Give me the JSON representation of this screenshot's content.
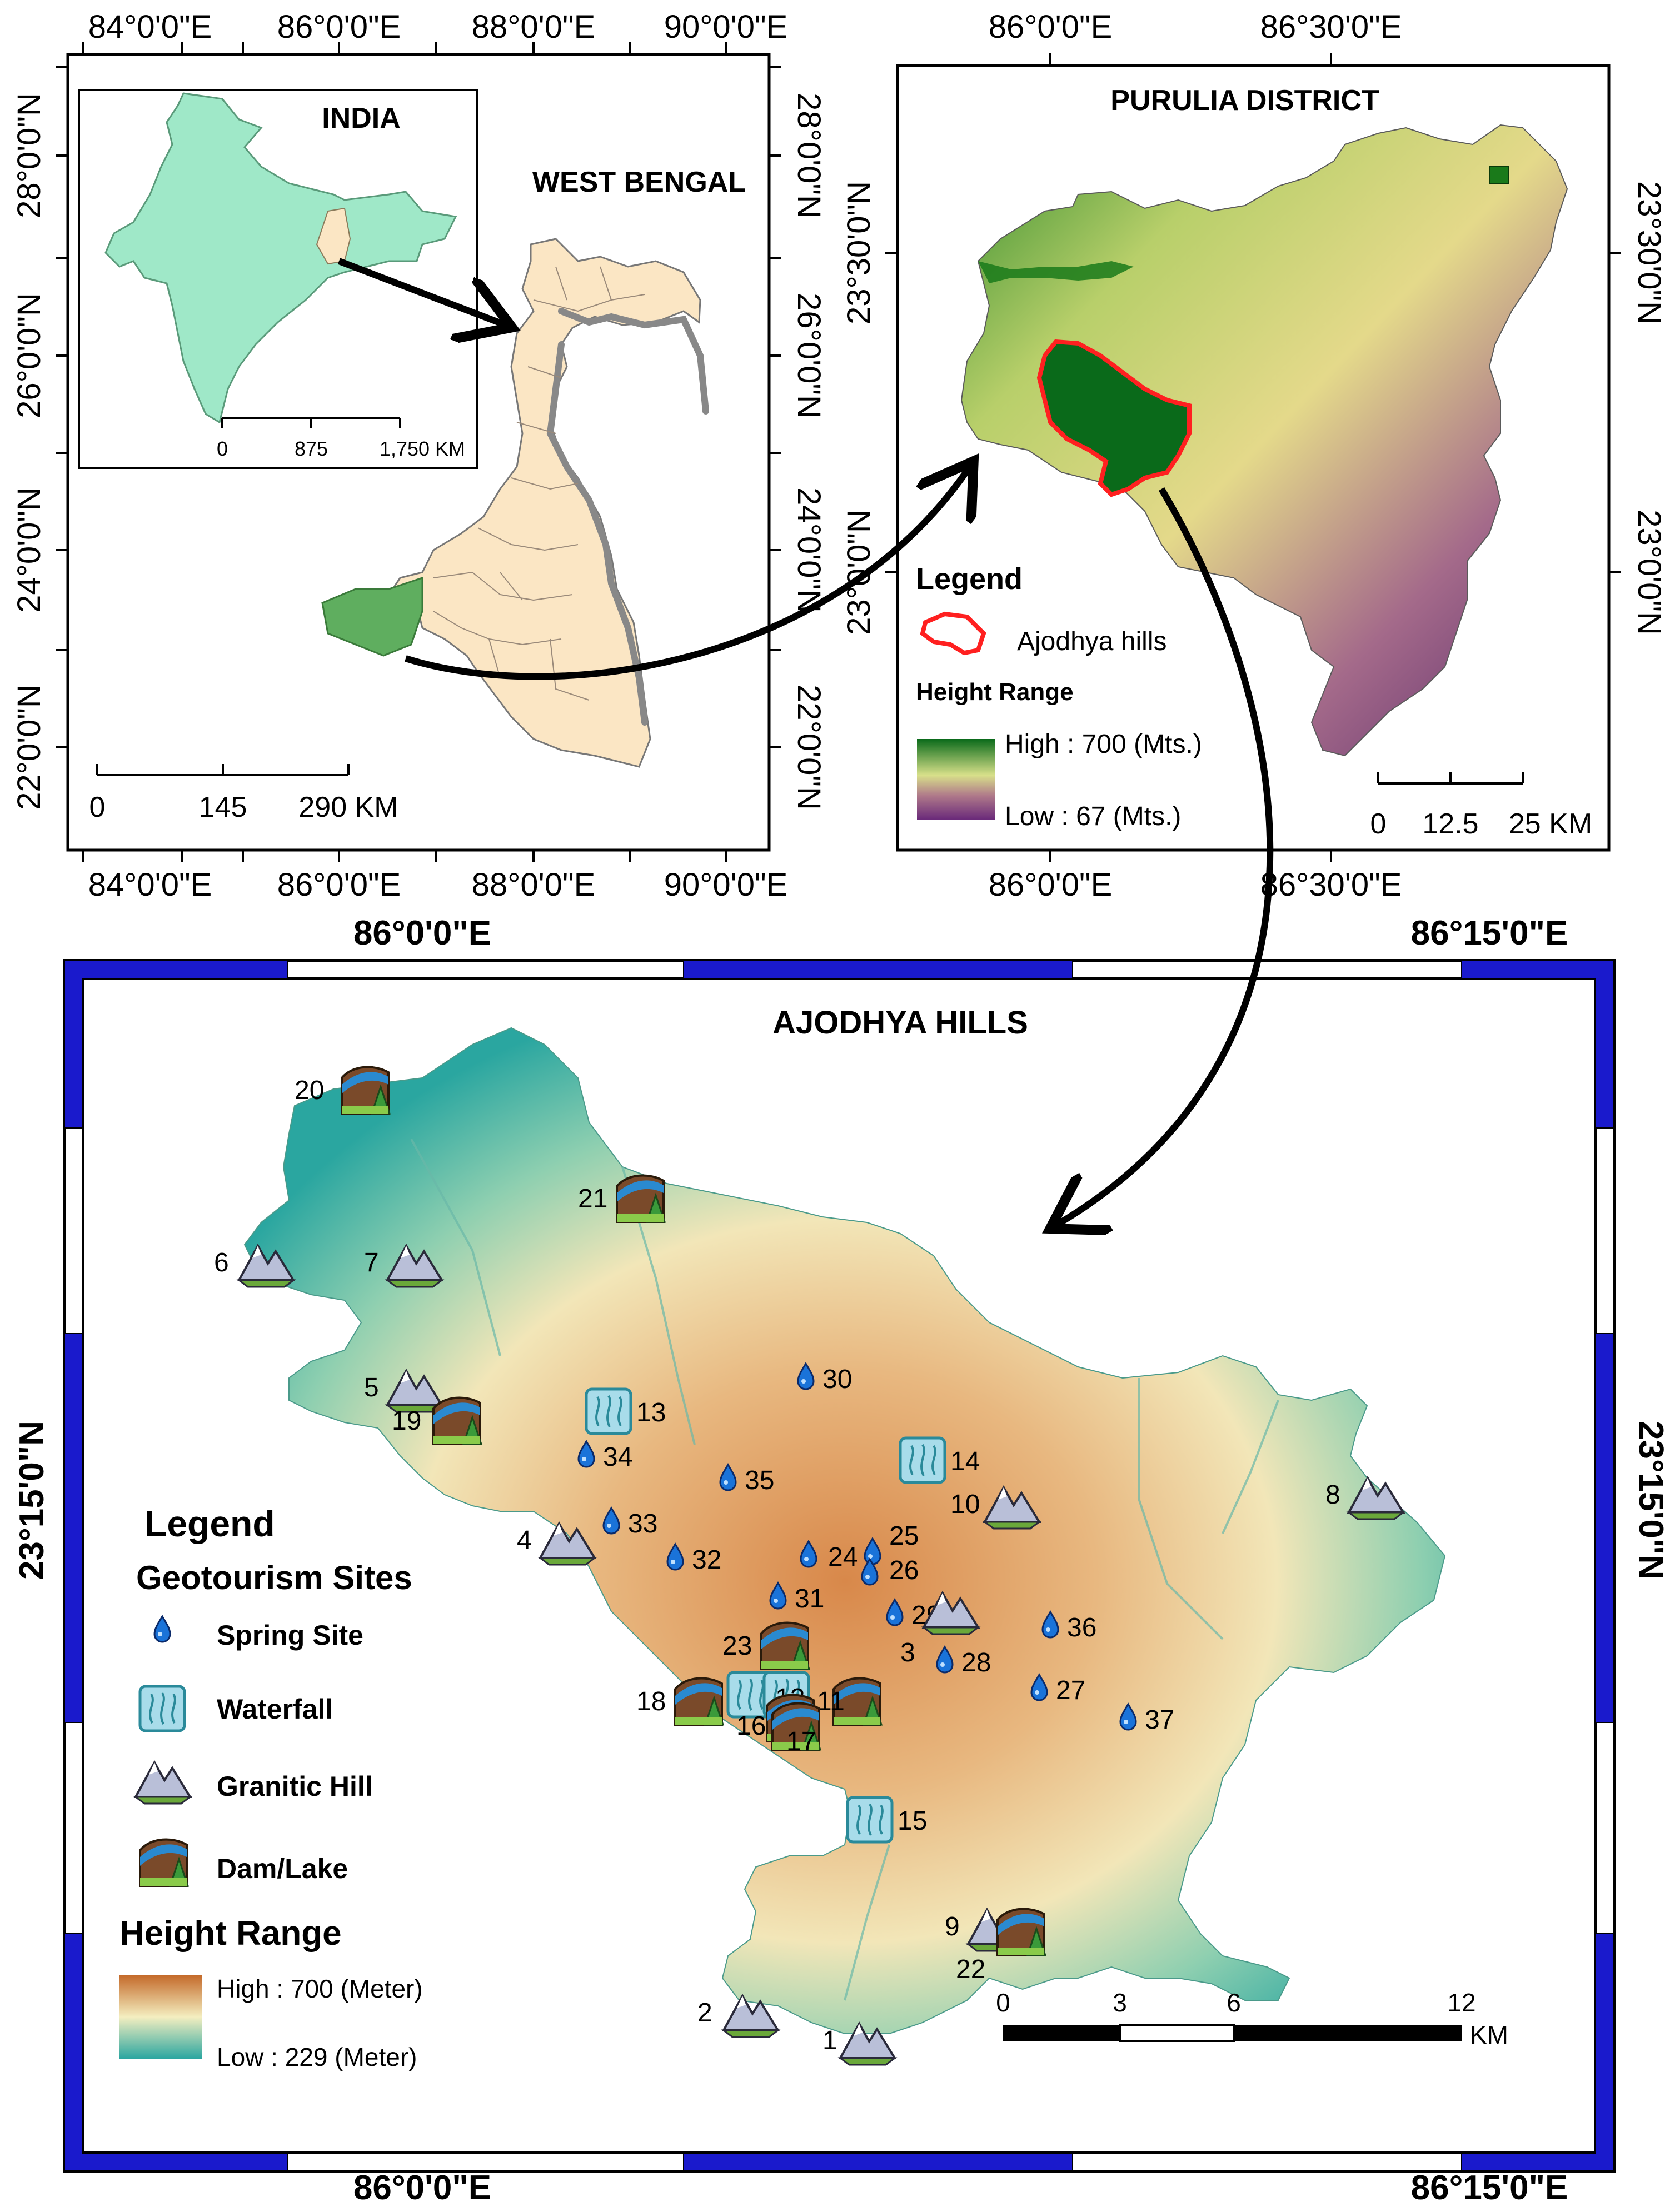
{
  "panel_wb": {
    "top_ticks": [
      "84°0'0\"E",
      "86°0'0\"E",
      "88°0'0\"E",
      "90°0'0\"E"
    ],
    "bottom_ticks": [
      "84°0'0\"E",
      "86°0'0\"E",
      "88°0'0\"E",
      "90°0'0\"E"
    ],
    "left_ticks": [
      "28°0'0\"N",
      "26°0'0\"N",
      "24°0'0\"N",
      "22°0'0\"N"
    ],
    "right_ticks": [
      "28°0'0\"N",
      "26°0'0\"N",
      "24°0'0\"N",
      "22°0'0\"N"
    ],
    "title": "WEST BENGAL",
    "inset_title": "INDIA",
    "inset_scale": [
      "0",
      "875",
      "1,750 KM"
    ],
    "scale": [
      "0",
      "145",
      "290 KM"
    ]
  },
  "panel_purulia": {
    "title": "PURULIA DISTRICT",
    "top_ticks": [
      "86°0'0\"E",
      "86°30'0\"E"
    ],
    "bottom_ticks": [
      "86°0'0\"E",
      "86°30'0\"E"
    ],
    "left_ticks": [
      "23°30'0\"N",
      "23°0'0\"N"
    ],
    "right_ticks": [
      "23°30'0\"N",
      "23°0'0\"N"
    ],
    "legend_title": "Legend",
    "legend_ajodhya": "Ajodhya hills",
    "height_title": "Height Range",
    "high": "High : 700 (Mts.)",
    "low": "Low : 67 (Mts.)",
    "scale": [
      "0",
      "12.5",
      "25 KM"
    ]
  },
  "panel_ajodhya": {
    "title": "AJODHYA HILLS",
    "top_ticks": [
      "86°0'0\"E",
      "86°15'0\"E"
    ],
    "bottom_ticks": [
      "86°0'0\"E",
      "86°15'0\"E"
    ],
    "left_tick": "23°15'0\"N",
    "right_tick": "23°15'0\"N",
    "legend_title": "Legend",
    "legend_subtitle": "Geotourism Sites",
    "legend_items": [
      "Spring Site",
      "Waterfall",
      "Granitic Hill",
      "Dam/Lake"
    ],
    "height_title": "Height Range",
    "high": "High : 700 (Meter)",
    "low": "Low : 229 (Meter)",
    "scale": [
      "0",
      "3",
      "6",
      "12"
    ],
    "scale_unit": "KM"
  },
  "sites": {
    "springs": [
      "24",
      "25",
      "26",
      "27",
      "28",
      "29",
      "30",
      "31",
      "32",
      "33",
      "34",
      "35",
      "36",
      "37"
    ],
    "waterfalls": [
      "12",
      "13",
      "14",
      "15"
    ],
    "hills": [
      "1",
      "2",
      "3",
      "4",
      "5",
      "6",
      "7",
      "8",
      "9",
      "10"
    ],
    "dams": [
      "11",
      "16",
      "17",
      "18",
      "19",
      "20",
      "21",
      "22",
      "23"
    ]
  },
  "colors": {
    "india": "#9fe8c8",
    "west_bengal": "#fbe6c4",
    "purulia_highlight": "#5fae5f",
    "ajodhya_outline": "#ff2020",
    "purulia_high": "#0a6a1a",
    "purulia_low": "#6a2a7a",
    "ajodhya_high": "#c46a2a",
    "ajodhya_low": "#2aa6a0",
    "frame_blue": "#1a1acc"
  }
}
